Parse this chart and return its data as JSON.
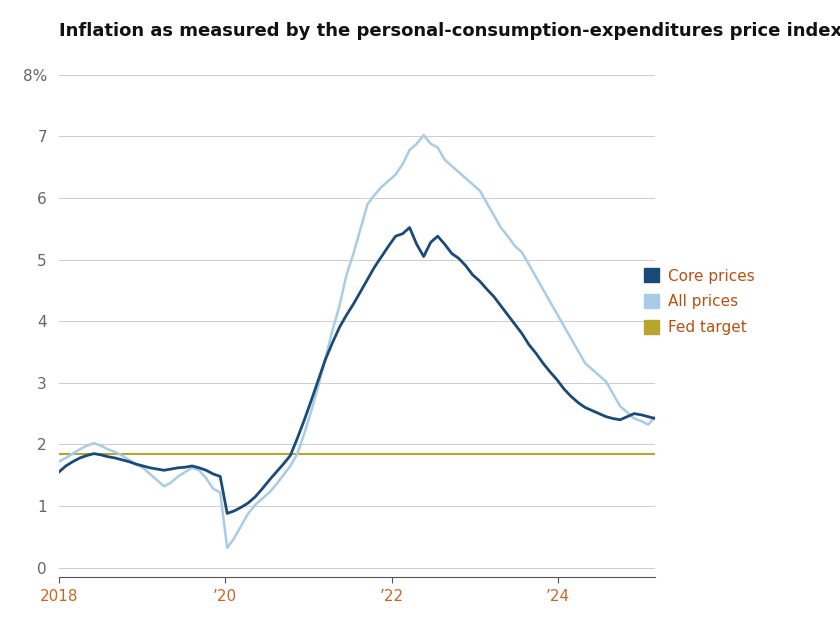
{
  "title": "Inflation as measured by the personal-consumption-expenditures price index",
  "fed_target": 1.85,
  "core_color": "#1a4a7a",
  "all_color": "#a8cce8",
  "fed_color": "#b8a530",
  "background_color": "#ffffff",
  "ylim": [
    -0.15,
    8.4
  ],
  "yticks": [
    0,
    1,
    2,
    3,
    4,
    5,
    6,
    7,
    8
  ],
  "ytick_labels": [
    "0",
    "1",
    "2",
    "3",
    "4",
    "5",
    "6",
    "7",
    "8%"
  ],
  "x_tick_positions": [
    2018.0,
    2020.0,
    2022.0,
    2024.0
  ],
  "x_tick_labels": [
    "2018",
    "’20",
    "’22",
    "’24"
  ],
  "legend_labels": [
    "Core prices",
    "All prices",
    "Fed target"
  ],
  "legend_text_color": "#b85010",
  "title_fontsize": 13,
  "tick_fontsize": 11,
  "legend_fontsize": 11,
  "core_data": [
    1.55,
    1.65,
    1.72,
    1.78,
    1.82,
    1.85,
    1.83,
    1.8,
    1.78,
    1.75,
    1.72,
    1.68,
    1.65,
    1.62,
    1.6,
    1.58,
    1.6,
    1.62,
    1.63,
    1.65,
    1.62,
    1.58,
    1.52,
    1.48,
    0.88,
    0.92,
    0.98,
    1.05,
    1.15,
    1.28,
    1.42,
    1.55,
    1.68,
    1.82,
    2.1,
    2.4,
    2.72,
    3.05,
    3.38,
    3.65,
    3.9,
    4.1,
    4.28,
    4.48,
    4.68,
    4.88,
    5.05,
    5.22,
    5.38,
    5.42,
    5.52,
    5.25,
    5.05,
    5.28,
    5.38,
    5.25,
    5.1,
    5.02,
    4.9,
    4.75,
    4.65,
    4.52,
    4.4,
    4.25,
    4.1,
    3.95,
    3.8,
    3.62,
    3.48,
    3.32,
    3.18,
    3.05,
    2.9,
    2.78,
    2.68,
    2.6,
    2.55,
    2.5,
    2.45,
    2.42,
    2.4,
    2.45,
    2.5,
    2.48,
    2.45,
    2.42
  ],
  "all_data": [
    1.72,
    1.78,
    1.85,
    1.92,
    1.98,
    2.02,
    1.98,
    1.92,
    1.88,
    1.82,
    1.75,
    1.68,
    1.62,
    1.52,
    1.42,
    1.32,
    1.38,
    1.48,
    1.55,
    1.62,
    1.58,
    1.45,
    1.28,
    1.22,
    0.32,
    0.48,
    0.68,
    0.88,
    1.02,
    1.12,
    1.22,
    1.35,
    1.5,
    1.65,
    1.85,
    2.18,
    2.55,
    2.95,
    3.4,
    3.85,
    4.25,
    4.75,
    5.1,
    5.5,
    5.9,
    6.05,
    6.18,
    6.28,
    6.38,
    6.55,
    6.78,
    6.88,
    7.02,
    6.88,
    6.82,
    6.62,
    6.52,
    6.42,
    6.32,
    6.22,
    6.12,
    5.92,
    5.72,
    5.52,
    5.38,
    5.22,
    5.12,
    4.92,
    4.72,
    4.52,
    4.32,
    4.12,
    3.92,
    3.72,
    3.52,
    3.32,
    3.22,
    3.12,
    3.02,
    2.82,
    2.62,
    2.52,
    2.42,
    2.38,
    2.32,
    2.45
  ],
  "n_points": 86,
  "x_start_year": 2018.0,
  "x_end_year": 2025.17
}
